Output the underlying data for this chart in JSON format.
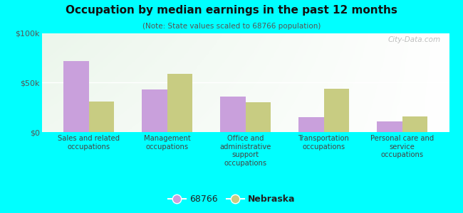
{
  "title": "Occupation by median earnings in the past 12 months",
  "subtitle": "(Note: State values scaled to 68766 population)",
  "categories": [
    "Sales and related\noccupations",
    "Management\noccupations",
    "Office and\nadministrative\nsupport\noccupations",
    "Transportation\noccupations",
    "Personal care and\nservice\noccupations"
  ],
  "values_68766": [
    72000,
    43000,
    36000,
    15000,
    11000
  ],
  "values_nebraska": [
    31000,
    59000,
    30000,
    44000,
    16000
  ],
  "color_68766": "#c9a0dc",
  "color_nebraska": "#c8cc82",
  "ylim": [
    0,
    100000
  ],
  "yticks": [
    0,
    50000,
    100000
  ],
  "ytick_labels": [
    "$0",
    "$50k",
    "$100k"
  ],
  "background_color": "#00ffff",
  "watermark": "City-Data.com",
  "legend_label_68766": "68766",
  "legend_label_nebraska": "Nebraska",
  "bar_width": 0.32
}
